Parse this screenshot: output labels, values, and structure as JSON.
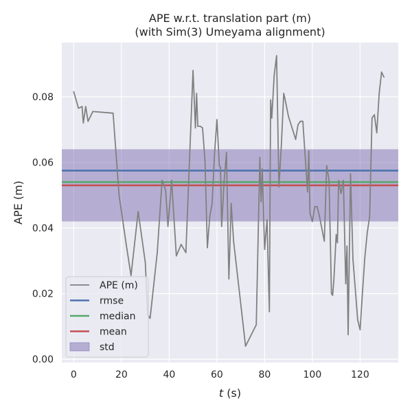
{
  "chart_data": {
    "type": "line",
    "title": "APE w.r.t. translation part (m)",
    "subtitle": "(with Sim(3) Umeyama alignment)",
    "xlabel_italic": "t",
    "xlabel_rest": " (s)",
    "ylabel": "APE (m)",
    "xlim": [
      -5,
      136
    ],
    "ylim": [
      -0.001,
      0.0965
    ],
    "xticks": [
      0,
      20,
      40,
      60,
      80,
      100,
      120
    ],
    "xtick_labels": [
      "0",
      "20",
      "40",
      "60",
      "80",
      "100",
      "120"
    ],
    "yticks": [
      0.0,
      0.02,
      0.04,
      0.06,
      0.08
    ],
    "ytick_labels": [
      "0.00",
      "0.02",
      "0.04",
      "0.06",
      "0.08"
    ],
    "grid": true,
    "legend_position": "lower-left",
    "stats": {
      "rmse": 0.0575,
      "median": 0.054,
      "mean": 0.053,
      "std_band": [
        0.042,
        0.064
      ]
    },
    "colors": {
      "background": "#eaeaf2",
      "grid": "#ffffff",
      "ape": "#808080",
      "rmse": "#4c72b0",
      "median": "#55a868",
      "mean": "#c44e52",
      "std": "#8172b2"
    },
    "legend": [
      {
        "key": "ape",
        "label": "APE (m)",
        "kind": "line"
      },
      {
        "key": "rmse",
        "label": "rmse",
        "kind": "line"
      },
      {
        "key": "median",
        "label": "median",
        "kind": "line"
      },
      {
        "key": "mean",
        "label": "mean",
        "kind": "line"
      },
      {
        "key": "std",
        "label": "std",
        "kind": "patch"
      }
    ],
    "series": [
      {
        "name": "APE (m)",
        "x": [
          0,
          2,
          3.5,
          4,
          5,
          6,
          8,
          16.5,
          19,
          22,
          24,
          27,
          30,
          31,
          32,
          35,
          37,
          38.5,
          39.5,
          41,
          43,
          45,
          47,
          50,
          51,
          51.5,
          52,
          53,
          54,
          55,
          56,
          57,
          58,
          59,
          60,
          61,
          61.5,
          62,
          63,
          64,
          65,
          66,
          67,
          72,
          76.5,
          78,
          78.5,
          79,
          80,
          81,
          82,
          82.5,
          83,
          84,
          85,
          86,
          87,
          88,
          88.5,
          90,
          93,
          94,
          95,
          96,
          98,
          98.5,
          99,
          100,
          101,
          102,
          103,
          105,
          106,
          107,
          108,
          108.5,
          109,
          110,
          110.5,
          111,
          112,
          113,
          114,
          114.5,
          115,
          116,
          117,
          119,
          120,
          121,
          122,
          123,
          124,
          125,
          126,
          127,
          128,
          129,
          130
        ],
        "y": [
          0.0815,
          0.0765,
          0.077,
          0.072,
          0.077,
          0.0725,
          0.0755,
          0.075,
          0.05,
          0.035,
          0.0255,
          0.045,
          0.0295,
          0.0135,
          0.0125,
          0.0325,
          0.0545,
          0.0515,
          0.0405,
          0.0545,
          0.0315,
          0.035,
          0.0325,
          0.088,
          0.0705,
          0.081,
          0.071,
          0.071,
          0.0705,
          0.0605,
          0.034,
          0.0435,
          0.0475,
          0.0625,
          0.073,
          0.059,
          0.0585,
          0.0405,
          0.054,
          0.063,
          0.0245,
          0.0475,
          0.036,
          0.004,
          0.0105,
          0.0615,
          0.048,
          0.058,
          0.0335,
          0.0425,
          0.0145,
          0.079,
          0.0735,
          0.0865,
          0.0925,
          0.0525,
          0.065,
          0.081,
          0.0795,
          0.074,
          0.067,
          0.0715,
          0.0725,
          0.0725,
          0.051,
          0.0635,
          0.0445,
          0.042,
          0.0465,
          0.0465,
          0.0435,
          0.036,
          0.059,
          0.0545,
          0.02,
          0.0195,
          0.024,
          0.038,
          0.0355,
          0.0545,
          0.0505,
          0.0545,
          0.023,
          0.0345,
          0.0075,
          0.0565,
          0.0305,
          0.012,
          0.009,
          0.0205,
          0.031,
          0.0385,
          0.0435,
          0.0735,
          0.0745,
          0.069,
          0.081,
          0.0875,
          0.086
        ]
      }
    ]
  }
}
